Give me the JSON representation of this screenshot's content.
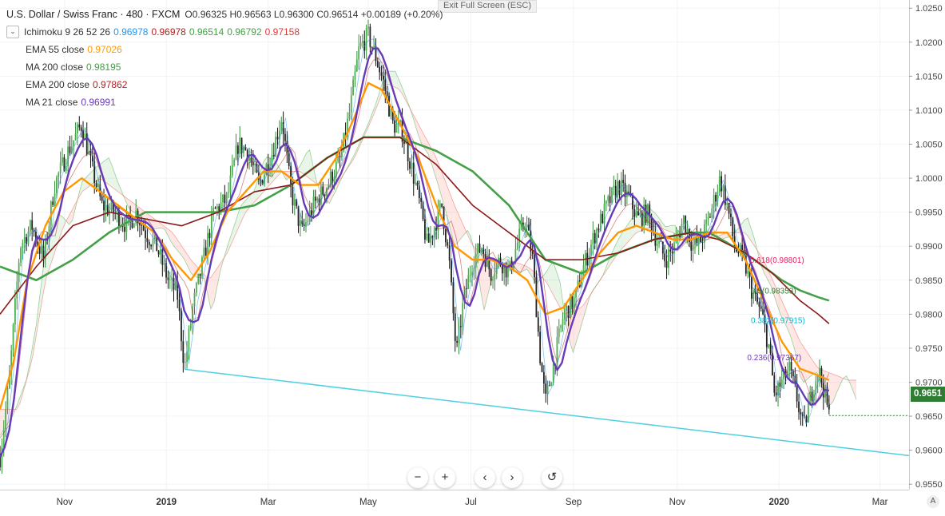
{
  "header": {
    "title": "U.S. Dollar / Swiss Franc · 480 · FXCM",
    "open_label": "O",
    "open": "0.96325",
    "high_label": "H",
    "high": "0.96563",
    "low_label": "L",
    "low": "0.96300",
    "close_label": "C",
    "close": "0.96514",
    "change": "+0.00189 (+0.20%)",
    "exit_fullscreen": "Exit Full Screen (ESC)"
  },
  "indicators": [
    {
      "label": "Ichimoku 9 26 52 26",
      "values": [
        {
          "text": "0.96978",
          "color": "#2196f3"
        },
        {
          "text": "0.96978",
          "color": "#b71c1c"
        },
        {
          "text": "0.96514",
          "color": "#43a047"
        },
        {
          "text": "0.96792",
          "color": "#43a047"
        },
        {
          "text": "0.97158",
          "color": "#e53935"
        }
      ]
    },
    {
      "label": "EMA 55 close",
      "values": [
        {
          "text": "0.97026",
          "color": "#ff9800"
        }
      ]
    },
    {
      "label": "MA 200 close",
      "values": [
        {
          "text": "0.98195",
          "color": "#43a047"
        }
      ]
    },
    {
      "label": "EMA 200 close",
      "values": [
        {
          "text": "0.97862",
          "color": "#b71c1c"
        }
      ]
    },
    {
      "label": "MA 21 close",
      "values": [
        {
          "text": "0.96991",
          "color": "#673ab7"
        }
      ]
    }
  ],
  "last_price_tag": "0.9651",
  "nav_buttons": [
    "−",
    "+",
    "‹",
    "›",
    "↺"
  ],
  "axis_mode": "A",
  "chart_data": {
    "type": "candlestick",
    "symbol": "USD/CHF",
    "ylim": [
      0.9542,
      1.0262
    ],
    "y_ticks": [
      "0.9550",
      "0.9600",
      "0.9650",
      "0.9700",
      "0.9750",
      "0.9800",
      "0.9850",
      "0.9900",
      "0.9950",
      "1.0000",
      "1.0050",
      "1.0100",
      "1.0150",
      "1.0200",
      "1.0250"
    ],
    "x_labels": [
      {
        "label": "Nov",
        "t": 0.071,
        "bold": false
      },
      {
        "label": "2019",
        "t": 0.183,
        "bold": true
      },
      {
        "label": "Mar",
        "t": 0.295,
        "bold": false
      },
      {
        "label": "May",
        "t": 0.405,
        "bold": false
      },
      {
        "label": "Jul",
        "t": 0.518,
        "bold": false
      },
      {
        "label": "Sep",
        "t": 0.631,
        "bold": false
      },
      {
        "label": "Nov",
        "t": 0.745,
        "bold": false
      },
      {
        "label": "2020",
        "t": 0.857,
        "bold": true
      },
      {
        "label": "Mar",
        "t": 0.968,
        "bold": false
      }
    ],
    "price_path": [
      [
        0.0,
        0.959
      ],
      [
        0.01,
        0.97
      ],
      [
        0.022,
        0.99
      ],
      [
        0.035,
        0.993
      ],
      [
        0.048,
        0.988
      ],
      [
        0.06,
        0.999
      ],
      [
        0.075,
        1.004
      ],
      [
        0.09,
        1.008
      ],
      [
        0.1,
        1.002
      ],
      [
        0.112,
        0.996
      ],
      [
        0.125,
        0.995
      ],
      [
        0.14,
        0.993
      ],
      [
        0.15,
        0.995
      ],
      [
        0.16,
        0.992
      ],
      [
        0.172,
        0.99
      ],
      [
        0.185,
        0.985
      ],
      [
        0.195,
        0.983
      ],
      [
        0.203,
        0.972
      ],
      [
        0.212,
        0.981
      ],
      [
        0.222,
        0.987
      ],
      [
        0.235,
        0.995
      ],
      [
        0.25,
        0.997
      ],
      [
        0.262,
        1.005
      ],
      [
        0.272,
        1.004
      ],
      [
        0.285,
        0.999
      ],
      [
        0.3,
        1.004
      ],
      [
        0.31,
        1.009
      ],
      [
        0.32,
        0.998
      ],
      [
        0.332,
        0.992
      ],
      [
        0.345,
        0.996
      ],
      [
        0.36,
        0.999
      ],
      [
        0.375,
        1.003
      ],
      [
        0.385,
        1.01
      ],
      [
        0.395,
        1.019
      ],
      [
        0.405,
        1.021
      ],
      [
        0.413,
        1.018
      ],
      [
        0.422,
        1.014
      ],
      [
        0.432,
        1.008
      ],
      [
        0.442,
        1.007
      ],
      [
        0.452,
        1.002
      ],
      [
        0.462,
        0.996
      ],
      [
        0.47,
        0.99
      ],
      [
        0.478,
        0.993
      ],
      [
        0.486,
        0.996
      ],
      [
        0.494,
        0.988
      ],
      [
        0.502,
        0.974
      ],
      [
        0.51,
        0.982
      ],
      [
        0.52,
        0.988
      ],
      [
        0.53,
        0.99
      ],
      [
        0.54,
        0.986
      ],
      [
        0.55,
        0.988
      ],
      [
        0.56,
        0.986
      ],
      [
        0.568,
        0.99
      ],
      [
        0.578,
        0.994
      ],
      [
        0.586,
        0.988
      ],
      [
        0.594,
        0.974
      ],
      [
        0.6,
        0.967
      ],
      [
        0.608,
        0.972
      ],
      [
        0.62,
        0.98
      ],
      [
        0.632,
        0.982
      ],
      [
        0.642,
        0.987
      ],
      [
        0.655,
        0.992
      ],
      [
        0.668,
        0.996
      ],
      [
        0.68,
        0.999
      ],
      [
        0.692,
        0.997
      ],
      [
        0.702,
        0.994
      ],
      [
        0.712,
        0.995
      ],
      [
        0.722,
        0.991
      ],
      [
        0.732,
        0.988
      ],
      [
        0.742,
        0.99
      ],
      [
        0.752,
        0.994
      ],
      [
        0.762,
        0.99
      ],
      [
        0.772,
        0.991
      ],
      [
        0.782,
        0.995
      ],
      [
        0.792,
        1.0
      ],
      [
        0.8,
        0.996
      ],
      [
        0.808,
        0.99
      ],
      [
        0.818,
        0.988
      ],
      [
        0.828,
        0.983
      ],
      [
        0.838,
        0.98
      ],
      [
        0.846,
        0.975
      ],
      [
        0.852,
        0.968
      ],
      [
        0.86,
        0.97
      ],
      [
        0.868,
        0.972
      ],
      [
        0.876,
        0.968
      ],
      [
        0.884,
        0.963
      ],
      [
        0.892,
        0.968
      ],
      [
        0.9,
        0.972
      ],
      [
        0.906,
        0.969
      ],
      [
        0.912,
        0.9651
      ]
    ],
    "ema55": [
      [
        0.0,
        0.966
      ],
      [
        0.015,
        0.973
      ],
      [
        0.03,
        0.985
      ],
      [
        0.05,
        0.993
      ],
      [
        0.07,
        0.998
      ],
      [
        0.09,
        1.0
      ],
      [
        0.11,
        0.998
      ],
      [
        0.13,
        0.996
      ],
      [
        0.15,
        0.994
      ],
      [
        0.17,
        0.992
      ],
      [
        0.19,
        0.988
      ],
      [
        0.21,
        0.985
      ],
      [
        0.23,
        0.989
      ],
      [
        0.25,
        0.995
      ],
      [
        0.27,
        0.998
      ],
      [
        0.29,
        1.001
      ],
      [
        0.31,
        1.001
      ],
      [
        0.33,
        0.999
      ],
      [
        0.35,
        0.999
      ],
      [
        0.37,
        1.003
      ],
      [
        0.39,
        1.009
      ],
      [
        0.405,
        1.014
      ],
      [
        0.42,
        1.013
      ],
      [
        0.44,
        1.008
      ],
      [
        0.46,
        1.003
      ],
      [
        0.48,
        0.996
      ],
      [
        0.5,
        0.99
      ],
      [
        0.52,
        0.988
      ],
      [
        0.54,
        0.988
      ],
      [
        0.56,
        0.987
      ],
      [
        0.58,
        0.985
      ],
      [
        0.6,
        0.98
      ],
      [
        0.62,
        0.981
      ],
      [
        0.64,
        0.985
      ],
      [
        0.66,
        0.989
      ],
      [
        0.68,
        0.992
      ],
      [
        0.7,
        0.993
      ],
      [
        0.72,
        0.992
      ],
      [
        0.74,
        0.991
      ],
      [
        0.76,
        0.991
      ],
      [
        0.78,
        0.992
      ],
      [
        0.8,
        0.992
      ],
      [
        0.82,
        0.988
      ],
      [
        0.84,
        0.982
      ],
      [
        0.86,
        0.976
      ],
      [
        0.88,
        0.972
      ],
      [
        0.9,
        0.971
      ],
      [
        0.912,
        0.9703
      ]
    ],
    "ma200": [
      [
        0.0,
        0.987
      ],
      [
        0.04,
        0.985
      ],
      [
        0.08,
        0.988
      ],
      [
        0.12,
        0.992
      ],
      [
        0.16,
        0.995
      ],
      [
        0.2,
        0.995
      ],
      [
        0.24,
        0.995
      ],
      [
        0.28,
        0.996
      ],
      [
        0.32,
        0.999
      ],
      [
        0.36,
        1.003
      ],
      [
        0.4,
        1.006
      ],
      [
        0.44,
        1.006
      ],
      [
        0.48,
        1.004
      ],
      [
        0.52,
        1.001
      ],
      [
        0.56,
        0.996
      ],
      [
        0.6,
        0.988
      ],
      [
        0.64,
        0.986
      ],
      [
        0.68,
        0.989
      ],
      [
        0.72,
        0.991
      ],
      [
        0.76,
        0.992
      ],
      [
        0.78,
        0.992
      ],
      [
        0.8,
        0.9905
      ],
      [
        0.83,
        0.988
      ],
      [
        0.86,
        0.985
      ],
      [
        0.88,
        0.9835
      ],
      [
        0.9,
        0.9825
      ],
      [
        0.912,
        0.982
      ]
    ],
    "ema200": [
      [
        0.0,
        0.98
      ],
      [
        0.04,
        0.987
      ],
      [
        0.08,
        0.993
      ],
      [
        0.12,
        0.995
      ],
      [
        0.16,
        0.994
      ],
      [
        0.2,
        0.993
      ],
      [
        0.24,
        0.995
      ],
      [
        0.28,
        0.998
      ],
      [
        0.32,
        0.999
      ],
      [
        0.36,
        1.003
      ],
      [
        0.4,
        1.006
      ],
      [
        0.44,
        1.006
      ],
      [
        0.48,
        1.002
      ],
      [
        0.52,
        0.996
      ],
      [
        0.56,
        0.992
      ],
      [
        0.6,
        0.988
      ],
      [
        0.64,
        0.988
      ],
      [
        0.68,
        0.989
      ],
      [
        0.72,
        0.991
      ],
      [
        0.76,
        0.992
      ],
      [
        0.79,
        0.991
      ],
      [
        0.82,
        0.989
      ],
      [
        0.85,
        0.986
      ],
      [
        0.88,
        0.982
      ],
      [
        0.9,
        0.98
      ],
      [
        0.912,
        0.9786
      ]
    ],
    "trendline": [
      [
        0.203,
        0.9719
      ],
      [
        1.0,
        0.9592
      ]
    ],
    "fibonacci": [
      {
        "label": "0.618(0.98801)",
        "price": 0.98801,
        "color": "#e91e63",
        "t": 0.825
      },
      {
        "label": "0.5(0.98353)",
        "price": 0.98353,
        "color": "#2e7d32",
        "t": 0.826
      },
      {
        "label": "0.382(0.97915)",
        "price": 0.97915,
        "color": "#00bcd4",
        "t": 0.826
      },
      {
        "label": "0.236(0.97367)",
        "price": 0.97367,
        "color": "#673ab7",
        "t": 0.822
      }
    ],
    "last_price": 0.9651
  }
}
